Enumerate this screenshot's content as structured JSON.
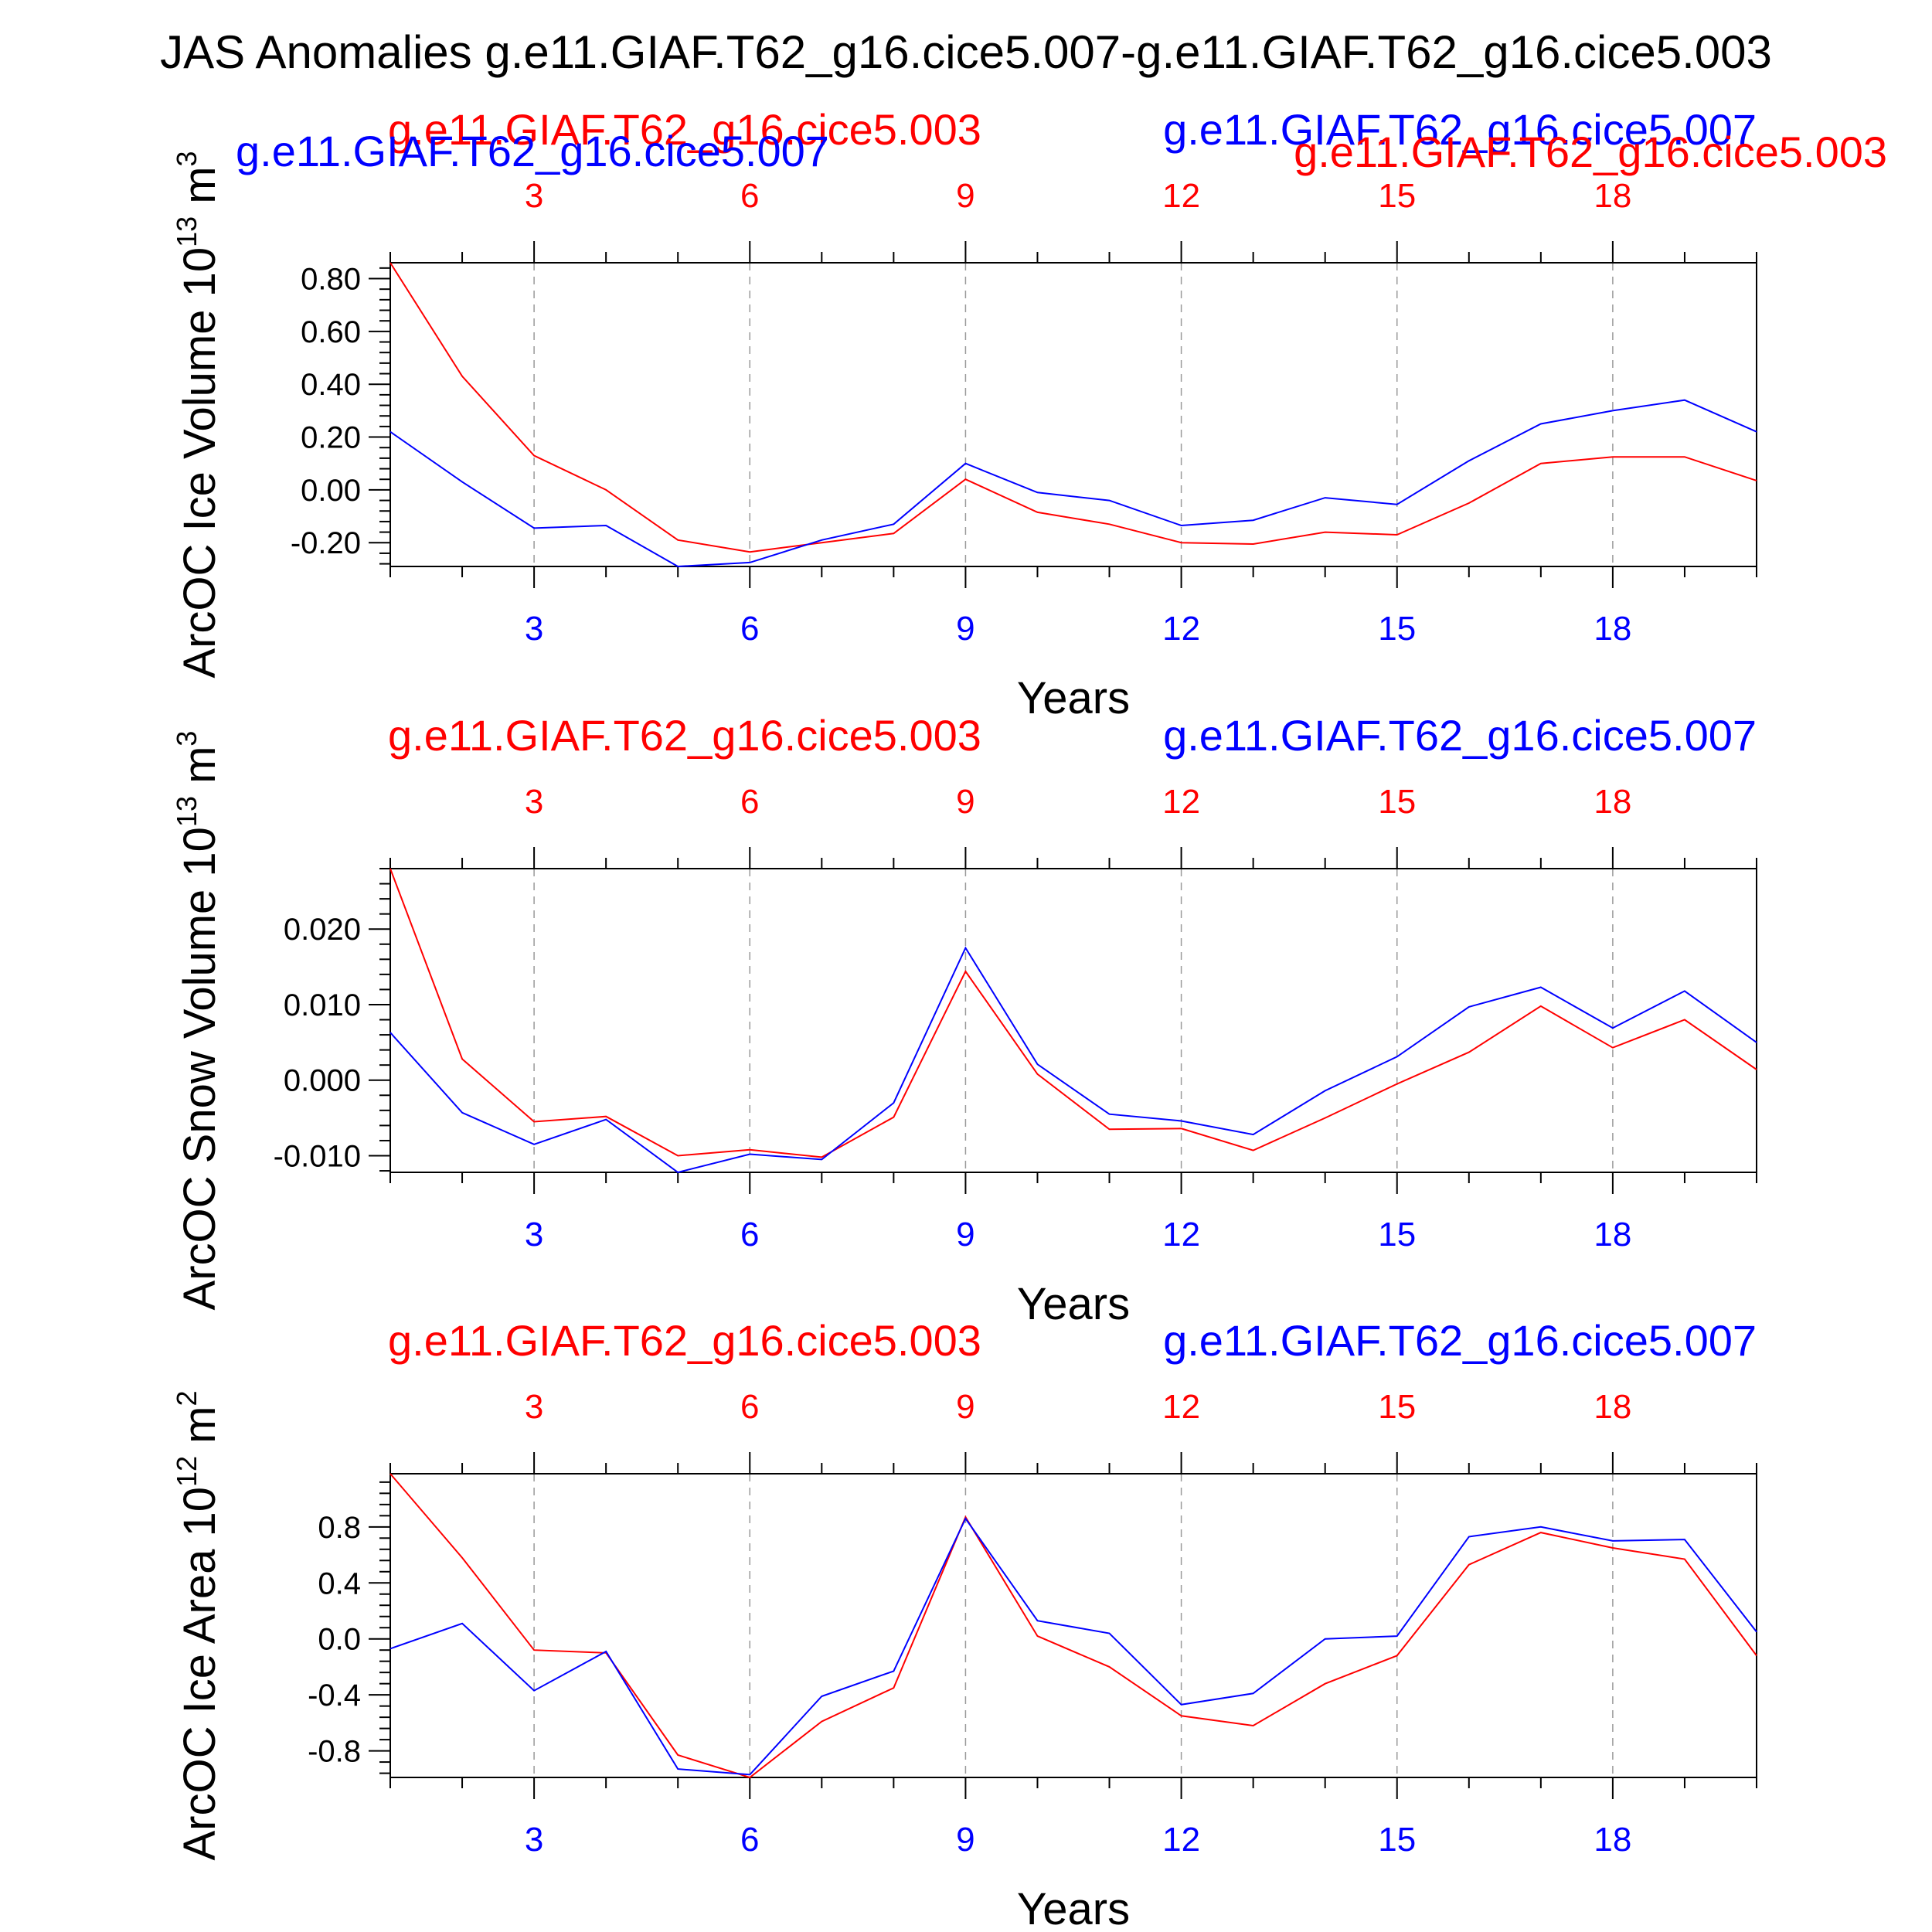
{
  "title": "JAS Anomalies g.e11.GIAF.T62_g16.cice5.007-g.e11.GIAF.T62_g16.cice5.003",
  "colors": {
    "case_a": "#ff0000",
    "case_b": "#0000ff",
    "axis": "#000000",
    "grid": "#999999"
  },
  "chart_data": [
    {
      "type": "line",
      "ylabel": "ArcOC Ice Volume 10",
      "ylabel_exponent": "13",
      "ylabel_unit": "m",
      "ylabel_unit_exponent": "3",
      "xlabel": "Years",
      "xlim": [
        1,
        20
      ],
      "ylim": [
        -0.29,
        0.86
      ],
      "yticks": [
        -0.2,
        0.0,
        0.2,
        0.4,
        0.6,
        0.8
      ],
      "ytick_labels": [
        "-0.20",
        "0.00",
        "0.20",
        "0.40",
        "0.60",
        "0.80"
      ],
      "xticks": [
        3,
        6,
        9,
        12,
        15,
        18
      ],
      "xtick_labels": [
        "3",
        "6",
        "9",
        "12",
        "15",
        "18"
      ],
      "top_labels": [
        {
          "text": "g.e11.GIAF.T62_g16.cice5.003",
          "color": "#ff0000"
        },
        {
          "text": "g.e11.GIAF.T62_g16.cice5.007",
          "color": "#0000ff"
        }
      ],
      "overlay_labels": [
        {
          "text": "g.e11.GIAF.T62_g16.cice5.007",
          "color": "#0000ff"
        },
        {
          "text": "g.e11.GIAF.T62_g16.cice5.003",
          "color": "#ff0000"
        }
      ],
      "series": [
        {
          "name": "g.e11.GIAF.T62_g16.cice5.003",
          "color": "#ff0000",
          "x": [
            1,
            2,
            3,
            4,
            5,
            6,
            7,
            8,
            9,
            10,
            11,
            12,
            13,
            14,
            15,
            16,
            17,
            18,
            19,
            20
          ],
          "values": [
            0.86,
            0.43,
            0.13,
            0.0,
            -0.19,
            -0.235,
            -0.2,
            -0.165,
            0.04,
            -0.085,
            -0.13,
            -0.2,
            -0.205,
            -0.16,
            -0.17,
            -0.05,
            0.1,
            0.125,
            0.125,
            0.035
          ]
        },
        {
          "name": "g.e11.GIAF.T62_g16.cice5.007",
          "color": "#0000ff",
          "x": [
            1,
            2,
            3,
            4,
            5,
            6,
            7,
            8,
            9,
            10,
            11,
            12,
            13,
            14,
            15,
            16,
            17,
            18,
            19,
            20
          ],
          "values": [
            0.22,
            0.03,
            -0.145,
            -0.135,
            -0.29,
            -0.275,
            -0.19,
            -0.13,
            0.1,
            -0.01,
            -0.04,
            -0.135,
            -0.115,
            -0.03,
            -0.055,
            0.11,
            0.25,
            0.3,
            0.34,
            0.22
          ]
        }
      ]
    },
    {
      "type": "line",
      "ylabel": "ArcOC Snow Volume 10",
      "ylabel_exponent": "13",
      "ylabel_unit": "m",
      "ylabel_unit_exponent": "3",
      "xlabel": "Years",
      "xlim": [
        1,
        20
      ],
      "ylim": [
        -0.0122,
        0.028
      ],
      "yticks": [
        -0.01,
        0.0,
        0.01,
        0.02
      ],
      "ytick_labels": [
        "-0.010",
        "0.000",
        "0.010",
        "0.020"
      ],
      "xticks": [
        3,
        6,
        9,
        12,
        15,
        18
      ],
      "xtick_labels": [
        "3",
        "6",
        "9",
        "12",
        "15",
        "18"
      ],
      "top_labels": [
        {
          "text": "g.e11.GIAF.T62_g16.cice5.003",
          "color": "#ff0000"
        },
        {
          "text": "g.e11.GIAF.T62_g16.cice5.007",
          "color": "#0000ff"
        }
      ],
      "series": [
        {
          "name": "g.e11.GIAF.T62_g16.cice5.003",
          "color": "#ff0000",
          "x": [
            1,
            2,
            3,
            4,
            5,
            6,
            7,
            8,
            9,
            10,
            11,
            12,
            13,
            14,
            15,
            16,
            17,
            18,
            19,
            20
          ],
          "values": [
            0.028,
            0.0028,
            -0.0055,
            -0.0048,
            -0.01,
            -0.0092,
            -0.0102,
            -0.0049,
            0.0144,
            0.0008,
            -0.0065,
            -0.0064,
            -0.0093,
            -0.005,
            -0.0005,
            0.0037,
            0.0098,
            0.0043,
            0.008,
            0.0014
          ]
        },
        {
          "name": "g.e11.GIAF.T62_g16.cice5.007",
          "color": "#0000ff",
          "x": [
            1,
            2,
            3,
            4,
            5,
            6,
            7,
            8,
            9,
            10,
            11,
            12,
            13,
            14,
            15,
            16,
            17,
            18,
            19,
            20
          ],
          "values": [
            0.0063,
            -0.0043,
            -0.0085,
            -0.0052,
            -0.0122,
            -0.0098,
            -0.0105,
            -0.003,
            0.0175,
            0.0021,
            -0.0045,
            -0.0054,
            -0.0072,
            -0.0014,
            0.0031,
            0.0097,
            0.0123,
            0.0069,
            0.0118,
            0.005
          ]
        }
      ]
    },
    {
      "type": "line",
      "ylabel": "ArcOC Ice Area 10",
      "ylabel_exponent": "12",
      "ylabel_unit": "m",
      "ylabel_unit_exponent": "2",
      "xlabel": "Years",
      "xlim": [
        1,
        20
      ],
      "ylim": [
        -0.99,
        1.18
      ],
      "yticks": [
        -0.8,
        -0.4,
        0.0,
        0.4,
        0.8
      ],
      "ytick_labels": [
        "-0.8",
        "-0.4",
        "0.0",
        "0.4",
        "0.8"
      ],
      "xticks": [
        3,
        6,
        9,
        12,
        15,
        18
      ],
      "xtick_labels": [
        "3",
        "6",
        "9",
        "12",
        "15",
        "18"
      ],
      "top_labels": [
        {
          "text": "g.e11.GIAF.T62_g16.cice5.003",
          "color": "#ff0000"
        },
        {
          "text": "g.e11.GIAF.T62_g16.cice5.007",
          "color": "#0000ff"
        }
      ],
      "series": [
        {
          "name": "g.e11.GIAF.T62_g16.cice5.003",
          "color": "#ff0000",
          "x": [
            1,
            2,
            3,
            4,
            5,
            6,
            7,
            8,
            9,
            10,
            11,
            12,
            13,
            14,
            15,
            16,
            17,
            18,
            19,
            20
          ],
          "values": [
            1.18,
            0.58,
            -0.08,
            -0.1,
            -0.83,
            -0.99,
            -0.59,
            -0.35,
            0.87,
            0.02,
            -0.2,
            -0.55,
            -0.62,
            -0.32,
            -0.12,
            0.53,
            0.76,
            0.65,
            0.57,
            -0.12
          ]
        },
        {
          "name": "g.e11.GIAF.T62_g16.cice5.007",
          "color": "#0000ff",
          "x": [
            1,
            2,
            3,
            4,
            5,
            6,
            7,
            8,
            9,
            10,
            11,
            12,
            13,
            14,
            15,
            16,
            17,
            18,
            19,
            20
          ],
          "values": [
            -0.07,
            0.11,
            -0.37,
            -0.09,
            -0.93,
            -0.97,
            -0.41,
            -0.23,
            0.86,
            0.13,
            0.04,
            -0.47,
            -0.39,
            0.0,
            0.02,
            0.73,
            0.8,
            0.7,
            0.71,
            0.05
          ]
        }
      ]
    }
  ]
}
